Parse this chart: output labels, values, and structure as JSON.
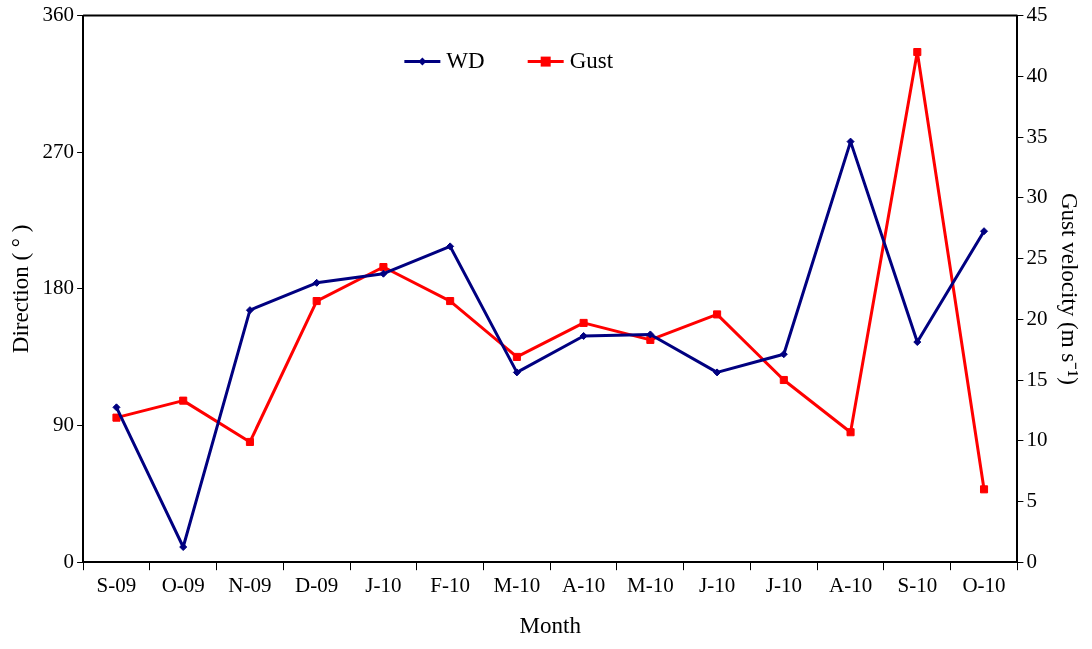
{
  "chart_data": {
    "type": "line",
    "xlabel": "Month",
    "ylabel": "Direction ( ° )",
    "y2label": "Gust velocity (m s⁻¹)",
    "categories": [
      "S-09",
      "O-09",
      "N-09",
      "D-09",
      "J-10",
      "F-10",
      "M-10",
      "A-10",
      "M-10",
      "J-10",
      "J-10",
      "A-10",
      "S-10",
      "O-10"
    ],
    "series": [
      {
        "name": "WD",
        "color": "#000080",
        "marker": "diamond",
        "values": [
          102,
          10,
          166,
          184,
          190,
          208,
          125,
          149,
          150,
          125,
          137,
          277,
          145,
          218
        ]
      },
      {
        "name": "Gust",
        "color": "#ff0000",
        "marker": "square",
        "axis": "y2",
        "values": [
          11.9,
          13.3,
          9.9,
          21.5,
          24.3,
          21.5,
          16.9,
          19.7,
          18.3,
          20.4,
          15,
          10.7,
          42,
          6
        ]
      }
    ],
    "ylim": [
      0,
      360
    ],
    "yticks": [
      0,
      90,
      180,
      270,
      360
    ],
    "y2lim": [
      0,
      45
    ],
    "y2ticks": [
      0,
      5,
      10,
      15,
      20,
      25,
      30,
      35,
      40,
      45
    ],
    "legend": "top",
    "grid": false,
    "line_style": "solid"
  }
}
